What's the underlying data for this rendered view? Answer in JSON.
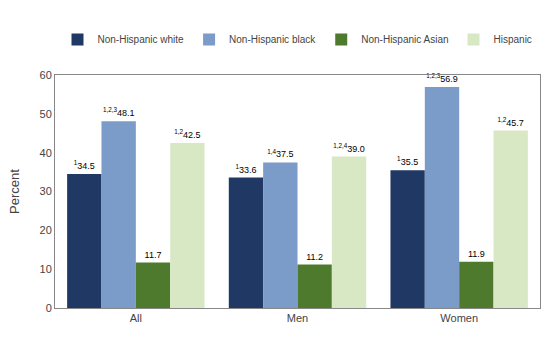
{
  "chart_data": {
    "type": "bar",
    "categories": [
      "All",
      "Men",
      "Women"
    ],
    "series": [
      {
        "name": "Non-Hispanic white",
        "color": "#1f3864",
        "values": [
          34.5,
          33.6,
          35.5
        ],
        "value_labels": [
          "34.5",
          "33.6",
          "35.5"
        ],
        "superscripts": [
          "1",
          "1",
          "1"
        ]
      },
      {
        "name": "Non-Hispanic black",
        "color": "#7b9bc8",
        "values": [
          48.1,
          37.5,
          56.9
        ],
        "value_labels": [
          "48.1",
          "37.5",
          "56.9"
        ],
        "superscripts": [
          "1,2,3",
          "1,4",
          "1,2,3"
        ]
      },
      {
        "name": "Non-Hispanic Asian",
        "color": "#4e7a2e",
        "values": [
          11.7,
          11.2,
          11.9
        ],
        "value_labels": [
          "11.7",
          "11.2",
          "11.9"
        ],
        "superscripts": [
          null,
          null,
          null
        ]
      },
      {
        "name": "Hispanic",
        "color": "#d9e8c4",
        "values": [
          42.5,
          39.0,
          45.7
        ],
        "value_labels": [
          "42.5",
          "39.0",
          "45.7"
        ],
        "superscripts": [
          "1,2",
          "1,2,4",
          "1,2"
        ]
      }
    ],
    "ylabel": "Percent",
    "ylim": [
      0,
      60
    ],
    "yticks": [
      0,
      10,
      20,
      30,
      40,
      50,
      60
    ],
    "grid": false,
    "legend": "top",
    "data_labels": true
  }
}
